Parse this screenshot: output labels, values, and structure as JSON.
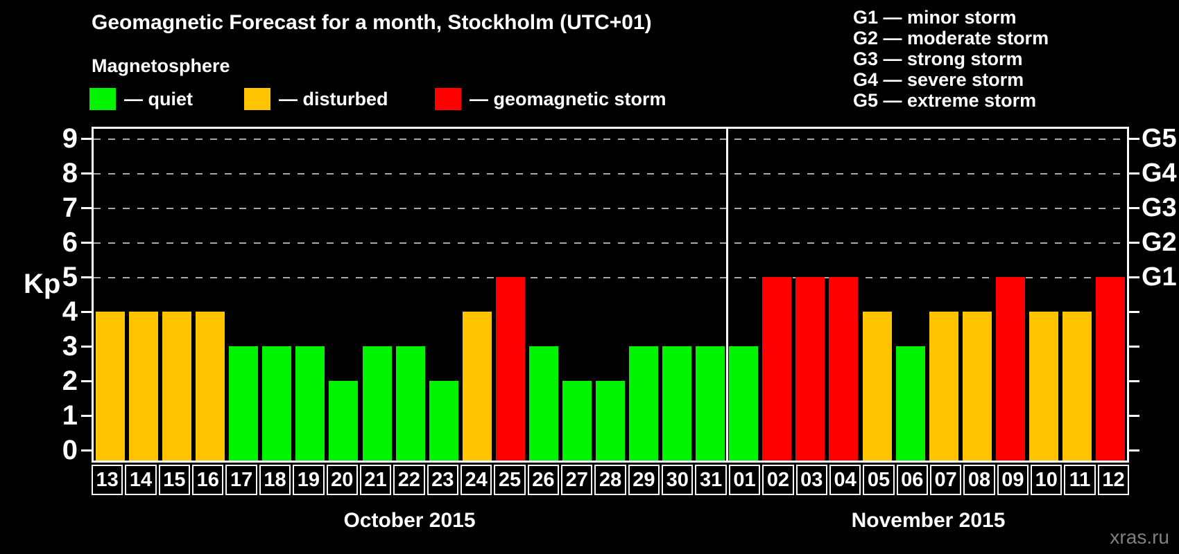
{
  "header": {
    "title": "Geomagnetic Forecast for a month, Stockholm (UTC+01)",
    "legend_title": "Magnetosphere"
  },
  "legend": [
    {
      "state": "quiet",
      "label": "— quiet"
    },
    {
      "state": "disturbed",
      "label": "— disturbed"
    },
    {
      "state": "storm",
      "label": "— geomagnetic storm"
    }
  ],
  "g_legend": [
    "G1 — minor storm",
    "G2 — moderate storm",
    "G3 — strong storm",
    "G4 — severe storm",
    "G5 — extreme storm"
  ],
  "colors": {
    "quiet": "#00f400",
    "disturbed": "#ffc300",
    "storm": "#ff0000",
    "axis": "#ffffff",
    "grid": "#aaaaaa",
    "watermark": "#808080"
  },
  "chart_data": {
    "type": "bar",
    "title": "Geomagnetic Forecast for a month, Stockholm (UTC+01)",
    "ylabel": "Kp",
    "ylim": [
      0,
      9
    ],
    "yticks": [
      0,
      1,
      2,
      3,
      4,
      5,
      6,
      7,
      8,
      9
    ],
    "gridlines_at": [
      5,
      6,
      7,
      8,
      9
    ],
    "grid": "dashed, horizontal, levels 5-9 only",
    "legend_position": "top",
    "right_axis_labels": [
      {
        "kp": 5,
        "label": "G1"
      },
      {
        "kp": 6,
        "label": "G2"
      },
      {
        "kp": 7,
        "label": "G3"
      },
      {
        "kp": 8,
        "label": "G4"
      },
      {
        "kp": 9,
        "label": "G5"
      }
    ],
    "categories": [
      "13",
      "14",
      "15",
      "16",
      "17",
      "18",
      "19",
      "20",
      "21",
      "22",
      "23",
      "24",
      "25",
      "26",
      "27",
      "28",
      "29",
      "30",
      "31",
      "01",
      "02",
      "03",
      "04",
      "05",
      "06",
      "07",
      "08",
      "09",
      "10",
      "11",
      "12"
    ],
    "values": [
      4,
      4,
      4,
      4,
      3,
      3,
      3,
      2,
      3,
      3,
      2,
      4,
      5,
      3,
      2,
      2,
      3,
      3,
      3,
      3,
      5,
      5,
      5,
      4,
      3,
      4,
      4,
      5,
      4,
      4,
      5
    ],
    "states": [
      "disturbed",
      "disturbed",
      "disturbed",
      "disturbed",
      "quiet",
      "quiet",
      "quiet",
      "quiet",
      "quiet",
      "quiet",
      "quiet",
      "disturbed",
      "storm",
      "quiet",
      "quiet",
      "quiet",
      "quiet",
      "quiet",
      "quiet",
      "quiet",
      "storm",
      "storm",
      "storm",
      "disturbed",
      "quiet",
      "disturbed",
      "disturbed",
      "storm",
      "disturbed",
      "disturbed",
      "storm"
    ],
    "months": [
      {
        "label": "October 2015",
        "day_count": 19
      },
      {
        "label": "November 2015",
        "day_count": 12
      }
    ]
  },
  "watermark": "xras.ru"
}
